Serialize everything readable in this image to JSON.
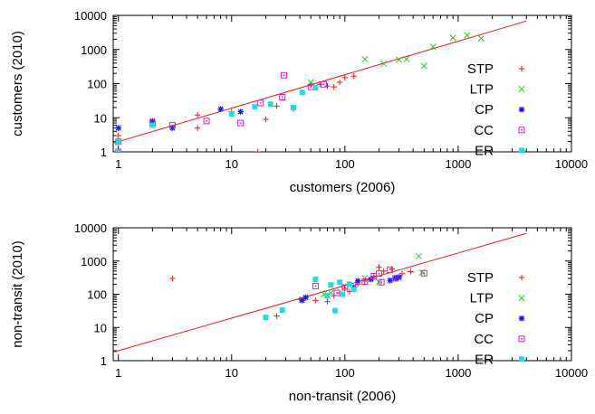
{
  "chart_data": [
    {
      "type": "scatter",
      "xlabel": "customers (2006)",
      "ylabel": "customers (2010)",
      "xscale": "log",
      "yscale": "log",
      "xlim": [
        0.9,
        10000
      ],
      "ylim": [
        1,
        10000
      ],
      "xticks": [
        1,
        10,
        100,
        1000,
        10000
      ],
      "xtick_labels": [
        "1",
        "10",
        "100",
        "1000",
        "10000"
      ],
      "yticks": [
        1,
        10,
        100,
        1000,
        10000
      ],
      "ytick_labels": [
        "1",
        "10",
        "100",
        "1000",
        "10000"
      ],
      "grid": false,
      "legend_position": "right",
      "fit_line": {
        "color": "#e41a1c",
        "points": [
          [
            0.9,
            1.8
          ],
          [
            4000,
            6800
          ]
        ]
      },
      "series": [
        {
          "name": "STP",
          "marker": "plus",
          "color": "#e41a1c",
          "points": [
            [
              1,
              2
            ],
            [
              1,
              3
            ],
            [
              5,
              5
            ],
            [
              5,
              12
            ],
            [
              10,
              15
            ],
            [
              17,
              1
            ],
            [
              20,
              9
            ],
            [
              25,
              22
            ],
            [
              35,
              18
            ],
            [
              50,
              90
            ],
            [
              60,
              95
            ],
            [
              70,
              85
            ],
            [
              80,
              80
            ],
            [
              90,
              110
            ],
            [
              100,
              150
            ],
            [
              120,
              165
            ]
          ]
        },
        {
          "name": "LTP",
          "marker": "cross",
          "color": "#22cc22",
          "points": [
            [
              50,
              110
            ],
            [
              150,
              520
            ],
            [
              220,
              380
            ],
            [
              300,
              500
            ],
            [
              350,
              520
            ],
            [
              500,
              330
            ],
            [
              600,
              1200
            ],
            [
              900,
              2200
            ],
            [
              1200,
              2600
            ],
            [
              1600,
              2100
            ]
          ]
        },
        {
          "name": "CP",
          "marker": "star",
          "color": "#1a1aee",
          "points": [
            [
              1,
              2
            ],
            [
              1,
              5
            ],
            [
              2,
              8
            ],
            [
              3,
              5
            ],
            [
              8,
              18
            ],
            [
              12,
              15
            ]
          ]
        },
        {
          "name": "CC",
          "marker": "square-open",
          "color": "#cc22cc",
          "points": [
            [
              1,
              1
            ],
            [
              1,
              2
            ],
            [
              2,
              7
            ],
            [
              3,
              6
            ],
            [
              6,
              8
            ],
            [
              12,
              7
            ],
            [
              18,
              27
            ],
            [
              28,
              40
            ],
            [
              29,
              175
            ],
            [
              50,
              80
            ],
            [
              65,
              95
            ]
          ]
        },
        {
          "name": "ER",
          "marker": "square-filled",
          "color": "#22dddd",
          "points": [
            [
              1,
              1
            ],
            [
              1,
              2
            ],
            [
              2,
              6
            ],
            [
              10,
              13
            ],
            [
              16,
              21
            ],
            [
              22,
              25
            ],
            [
              35,
              20
            ],
            [
              42,
              55
            ],
            [
              55,
              75
            ]
          ]
        }
      ]
    },
    {
      "type": "scatter",
      "xlabel": "non-transit (2006)",
      "ylabel": "non-transit (2010)",
      "xscale": "log",
      "yscale": "log",
      "xlim": [
        0.9,
        10000
      ],
      "ylim": [
        1,
        10000
      ],
      "xticks": [
        1,
        10,
        100,
        1000,
        10000
      ],
      "xtick_labels": [
        "1",
        "10",
        "100",
        "1000",
        "10000"
      ],
      "yticks": [
        1,
        10,
        100,
        1000,
        10000
      ],
      "ytick_labels": [
        "1",
        "10",
        "100",
        "1000",
        "10000"
      ],
      "grid": false,
      "legend_position": "right",
      "fit_line": {
        "color": "#e41a1c",
        "points": [
          [
            0.9,
            1.8
          ],
          [
            4000,
            6800
          ]
        ]
      },
      "series": [
        {
          "name": "STP",
          "marker": "plus",
          "color": "#e41a1c",
          "points": [
            [
              3,
              300
            ],
            [
              25,
              22
            ],
            [
              40,
              70
            ],
            [
              55,
              65
            ],
            [
              70,
              60
            ],
            [
              80,
              90
            ],
            [
              90,
              110
            ],
            [
              100,
              150
            ],
            [
              110,
              120
            ],
            [
              130,
              200
            ],
            [
              150,
              250
            ],
            [
              180,
              350
            ],
            [
              200,
              650
            ],
            [
              220,
              500
            ],
            [
              260,
              580
            ],
            [
              320,
              420
            ],
            [
              380,
              480
            ]
          ]
        },
        {
          "name": "LTP",
          "marker": "cross",
          "color": "#22cc22",
          "points": [
            [
              65,
              100
            ],
            [
              75,
              110
            ],
            [
              150,
              300
            ],
            [
              200,
              230
            ],
            [
              300,
              310
            ],
            [
              450,
              1400
            ],
            [
              480,
              450
            ]
          ]
        },
        {
          "name": "CP",
          "marker": "star",
          "color": "#1a1aee",
          "points": [
            [
              42,
              65
            ],
            [
              45,
              80
            ],
            [
              120,
              160
            ],
            [
              130,
              250
            ],
            [
              170,
              280
            ],
            [
              250,
              260
            ],
            [
              280,
              310
            ],
            [
              300,
              330
            ]
          ]
        },
        {
          "name": "CC",
          "marker": "square-open",
          "color": "#cc22cc",
          "points": [
            [
              55,
              175
            ],
            [
              85,
              110
            ],
            [
              100,
              160
            ],
            [
              150,
              240
            ],
            [
              180,
              350
            ],
            [
              200,
              420
            ],
            [
              210,
              230
            ],
            [
              250,
              550
            ],
            [
              280,
              300
            ],
            [
              500,
              430
            ]
          ]
        },
        {
          "name": "ER",
          "marker": "square-filled",
          "color": "#22dddd",
          "points": [
            [
              20,
              20
            ],
            [
              28,
              33
            ],
            [
              55,
              280
            ],
            [
              70,
              90
            ],
            [
              75,
              190
            ],
            [
              82,
              32
            ],
            [
              90,
              230
            ],
            [
              95,
              100
            ],
            [
              110,
              200
            ],
            [
              120,
              140
            ]
          ]
        }
      ]
    }
  ]
}
